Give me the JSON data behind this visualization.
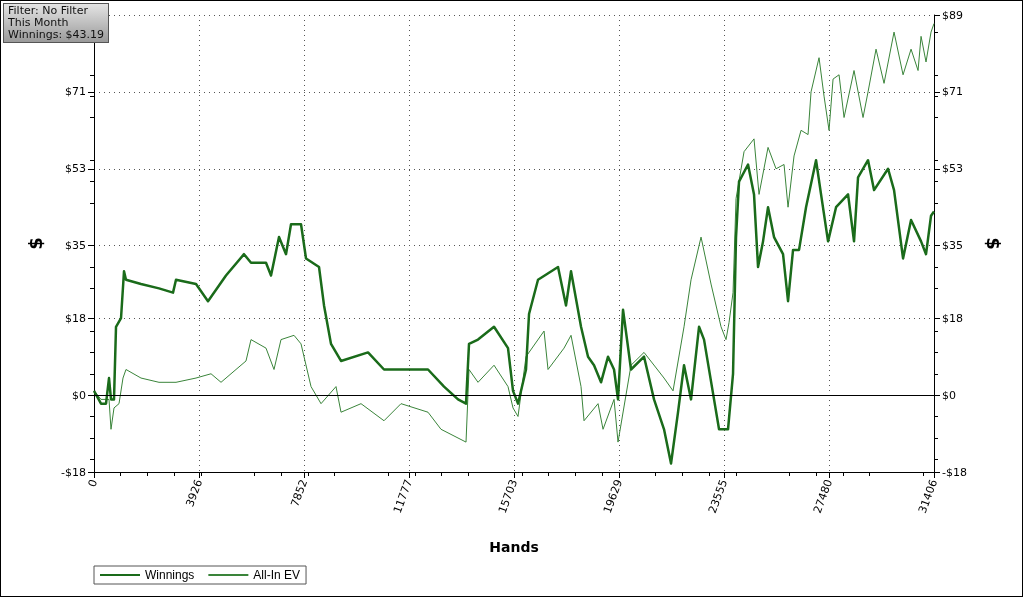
{
  "chart_data": {
    "type": "line",
    "xlabel": "Hands",
    "ylabel": "$",
    "y2label": "$",
    "annotations": [
      "Filter: No Filter",
      "This Month",
      "Winnings: $43.19"
    ],
    "xlim": [
      0,
      31406
    ],
    "xticks": [
      0,
      3926,
      7852,
      11777,
      15703,
      19629,
      23555,
      27480,
      31406
    ],
    "ylim": [
      -18,
      89
    ],
    "yticks": [
      {
        "value": -18,
        "label": "-$18"
      },
      {
        "value": 0,
        "label": "$0"
      },
      {
        "value": 18,
        "label": "$18"
      },
      {
        "value": 35,
        "label": "$35"
      },
      {
        "value": 53,
        "label": "$53"
      },
      {
        "value": 71,
        "label": "$71"
      },
      {
        "value": 89,
        "label": null
      }
    ],
    "y2lim": [
      -18,
      89
    ],
    "y2ticks": [
      {
        "value": -18,
        "label": "-$18"
      },
      {
        "value": 0,
        "label": "$0"
      },
      {
        "value": 18,
        "label": "$18"
      },
      {
        "value": 35,
        "label": "$35"
      },
      {
        "value": 53,
        "label": "$53"
      },
      {
        "value": 71,
        "label": "$71"
      },
      {
        "value": 89,
        "label": "$89"
      }
    ],
    "grid": true,
    "legend": "bottom left",
    "marker": "none",
    "line_style": "solid",
    "ref_lines": [
      {
        "axis": "y",
        "value": 0,
        "color": "#000000"
      }
    ],
    "series": [
      {
        "name": "Winnings",
        "color": "#1a6b1a",
        "x": [
          0,
          262,
          449,
          561,
          636,
          748,
          823,
          1010,
          1122,
          1196,
          1757,
          2430,
          2954,
          3066,
          3814,
          4262,
          4935,
          5608,
          5870,
          6431,
          6618,
          6917,
          7179,
          7366,
          7740,
          7927,
          8413,
          8600,
          8861,
          9235,
          10245,
          10843,
          11740,
          12488,
          13087,
          13610,
          13909,
          14021,
          14358,
          14956,
          15479,
          15666,
          15853,
          16152,
          16265,
          16601,
          17349,
          17648,
          17835,
          18209,
          18471,
          18695,
          18957,
          19219,
          19443,
          19592,
          19779,
          20078,
          20565,
          20938,
          21312,
          21574,
          21836,
          22060,
          22322,
          22621,
          22808,
          23182,
          23369,
          23705,
          23892,
          24004,
          24116,
          24453,
          24677,
          24827,
          25014,
          25201,
          25425,
          25762,
          25949,
          26136,
          26360,
          26622,
          26996,
          27183,
          27445,
          27744,
          28193,
          28416,
          28566,
          28940,
          29164,
          29688,
          29912,
          30249,
          30548,
          30922,
          31108,
          31295,
          31406
        ],
        "values": [
          1,
          -2,
          -2,
          4,
          -1,
          -1,
          16,
          18,
          29,
          27,
          26,
          25,
          24,
          27,
          26,
          22,
          28,
          33,
          31,
          31,
          28,
          37,
          33,
          40,
          40,
          32,
          30,
          21,
          12,
          8,
          10,
          6,
          6,
          6,
          2,
          -1,
          -2,
          12,
          13,
          16,
          11,
          1,
          -2,
          6,
          19,
          27,
          30,
          21,
          29,
          16,
          9,
          7,
          3,
          9,
          6,
          -1,
          20,
          6,
          9,
          -1,
          -8,
          -16,
          -4,
          7,
          -1,
          16,
          13,
          -1,
          -8,
          -8,
          5,
          37,
          50,
          54,
          47,
          30,
          36,
          44,
          37,
          33,
          22,
          34,
          34,
          44,
          55,
          47,
          36,
          44,
          47,
          36,
          51,
          55,
          48,
          53,
          48,
          32,
          41,
          36,
          33,
          42,
          43
        ]
      },
      {
        "name": "All-In EV",
        "color": "#3a843a",
        "x": [
          0,
          262,
          561,
          636,
          748,
          935,
          1084,
          1196,
          1757,
          2430,
          3066,
          3814,
          4375,
          4749,
          5309,
          5683,
          5870,
          6431,
          6730,
          6992,
          7478,
          7740,
          8114,
          8488,
          9048,
          9235,
          9983,
          10843,
          11479,
          12488,
          12974,
          13909,
          14021,
          14358,
          14956,
          15479,
          15666,
          15853,
          16152,
          16826,
          16975,
          17573,
          17835,
          18209,
          18321,
          18845,
          19032,
          19443,
          19592,
          20078,
          20565,
          21312,
          21649,
          22060,
          22322,
          22696,
          23070,
          23444,
          23630,
          23743,
          23892,
          24004,
          24304,
          24677,
          24864,
          25201,
          25500,
          25799,
          25949,
          26173,
          26435,
          26697,
          26809,
          27108,
          27295,
          27482,
          27632,
          27856,
          28043,
          28416,
          28753,
          28940,
          29239,
          29538,
          29912,
          30249,
          30548,
          30810,
          30922,
          31108,
          31295,
          31406
        ],
        "values": [
          1,
          -1,
          -1,
          -8,
          -3,
          -2,
          4,
          6,
          4,
          3,
          3,
          4,
          5,
          3,
          6,
          8,
          13,
          11,
          6,
          13,
          14,
          12,
          2,
          -2,
          2,
          -4,
          -2,
          -6,
          -2,
          -4,
          -8,
          -11,
          6,
          3,
          7,
          2,
          -3,
          -5,
          9,
          15,
          6,
          11,
          14,
          2,
          -6,
          -2,
          -8,
          -1,
          -11,
          7,
          10,
          4,
          1,
          16,
          27,
          37,
          26,
          16,
          13,
          17,
          24,
          46,
          57,
          60,
          47,
          58,
          53,
          54,
          44,
          56,
          62,
          61,
          71,
          79,
          70,
          62,
          74,
          75,
          65,
          76,
          65,
          71,
          81,
          73,
          85,
          75,
          81,
          76,
          84,
          78,
          85,
          87
        ]
      }
    ]
  }
}
